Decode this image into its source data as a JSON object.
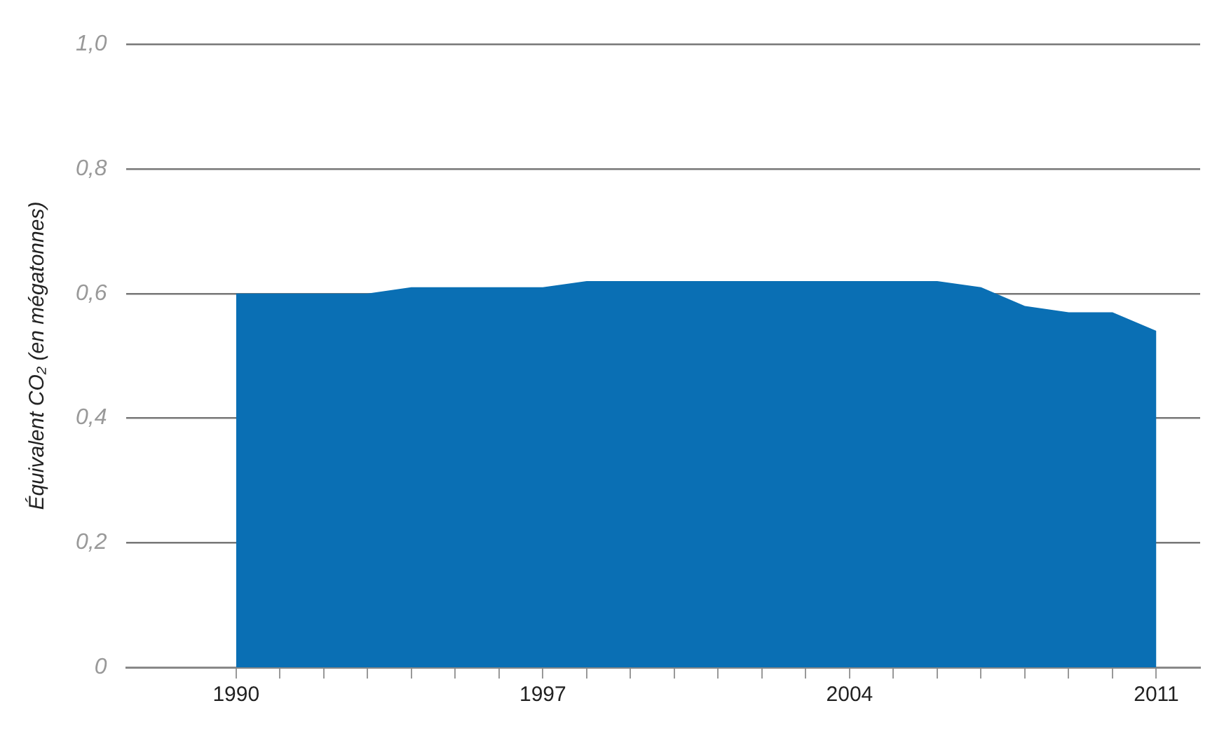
{
  "chart_data": {
    "type": "area",
    "ylabel": "Équivalent CO₂ (en mégatonnes)",
    "x": [
      1990,
      1991,
      1992,
      1993,
      1994,
      1995,
      1996,
      1997,
      1998,
      1999,
      2000,
      2001,
      2002,
      2003,
      2004,
      2005,
      2006,
      2007,
      2008,
      2009,
      2010,
      2011
    ],
    "series": [
      {
        "color": "#0a6fb4",
        "values": [
          0.6,
          0.6,
          0.6,
          0.6,
          0.61,
          0.61,
          0.61,
          0.61,
          0.62,
          0.62,
          0.62,
          0.62,
          0.62,
          0.62,
          0.62,
          0.62,
          0.62,
          0.61,
          0.58,
          0.57,
          0.57,
          0.54
        ]
      }
    ],
    "xlim": [
      1987.5,
      2012
    ],
    "xticks": [
      1990,
      {
        "value": 1991,
        "label": null
      },
      {
        "value": 1992,
        "label": null
      },
      {
        "value": 1993,
        "label": null
      },
      {
        "value": 1994,
        "label": null
      },
      {
        "value": 1995,
        "label": null
      },
      {
        "value": 1996,
        "label": null
      },
      1997,
      {
        "value": 1998,
        "label": null
      },
      {
        "value": 1999,
        "label": null
      },
      {
        "value": 2000,
        "label": null
      },
      {
        "value": 2001,
        "label": null
      },
      {
        "value": 2002,
        "label": null
      },
      {
        "value": 2003,
        "label": null
      },
      2004,
      {
        "value": 2005,
        "label": null
      },
      {
        "value": 2006,
        "label": null
      },
      {
        "value": 2007,
        "label": null
      },
      {
        "value": 2008,
        "label": null
      },
      {
        "value": 2009,
        "label": null
      },
      {
        "value": 2010,
        "label": null
      },
      2011
    ],
    "ylim": [
      0,
      1.0
    ],
    "yticks": [
      {
        "value": 0,
        "label": "0"
      },
      {
        "value": 0.2,
        "label": "0,2"
      },
      {
        "value": 0.4,
        "label": "0,4"
      },
      {
        "value": 0.6,
        "label": "0,6"
      },
      {
        "value": 0.8,
        "label": "0,8"
      },
      {
        "value": 1.0,
        "label": "1,0"
      }
    ],
    "grid": "y",
    "legend": false
  }
}
